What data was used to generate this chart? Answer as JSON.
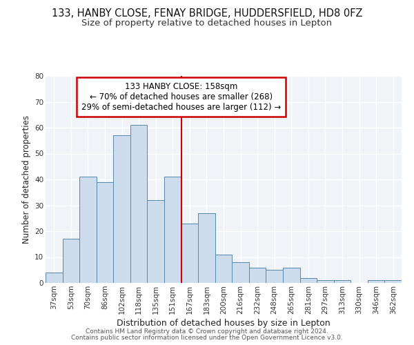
{
  "title1": "133, HANBY CLOSE, FENAY BRIDGE, HUDDERSFIELD, HD8 0FZ",
  "title2": "Size of property relative to detached houses in Lepton",
  "xlabel": "Distribution of detached houses by size in Lepton",
  "ylabel": "Number of detached properties",
  "categories": [
    "37sqm",
    "53sqm",
    "70sqm",
    "86sqm",
    "102sqm",
    "118sqm",
    "135sqm",
    "151sqm",
    "167sqm",
    "183sqm",
    "200sqm",
    "216sqm",
    "232sqm",
    "248sqm",
    "265sqm",
    "281sqm",
    "297sqm",
    "313sqm",
    "330sqm",
    "346sqm",
    "362sqm"
  ],
  "values": [
    4,
    17,
    41,
    39,
    57,
    61,
    32,
    41,
    23,
    27,
    11,
    8,
    6,
    5,
    6,
    2,
    1,
    1,
    0,
    1,
    1
  ],
  "bar_color": "#ccdcec",
  "bar_edge_color": "#5588aa",
  "bar_width": 1.0,
  "red_line_x": 7.5,
  "red_line_color": "#cc0000",
  "annotation_text": "133 HANBY CLOSE: 158sqm\n← 70% of detached houses are smaller (268)\n29% of semi-detached houses are larger (112) →",
  "annotation_box_color": "#ffffff",
  "annotation_box_edge": "#cc0000",
  "ylim": [
    0,
    80
  ],
  "yticks": [
    0,
    10,
    20,
    30,
    40,
    50,
    60,
    70,
    80
  ],
  "footer1": "Contains HM Land Registry data © Crown copyright and database right 2024.",
  "footer2": "Contains public sector information licensed under the Open Government Licence v3.0.",
  "background_color": "#ffffff",
  "plot_bg_color": "#f0f4f8",
  "grid_color": "#ffffff",
  "title1_fontsize": 10.5,
  "title2_fontsize": 9.5,
  "xlabel_fontsize": 9,
  "ylabel_fontsize": 8.5,
  "tick_fontsize": 7.5,
  "footer_fontsize": 6.5,
  "annot_fontsize": 8.5
}
